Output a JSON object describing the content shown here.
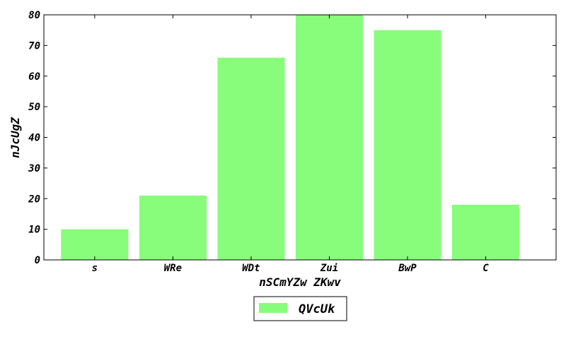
{
  "chart_data": {
    "type": "bar",
    "categories": [
      "s",
      "WRe",
      "WDt",
      "Zui",
      "BwP",
      "C"
    ],
    "series": [
      {
        "name": "QVcUk",
        "values": [
          10,
          21,
          66,
          80,
          75,
          18
        ],
        "color": "#88fc7b"
      }
    ],
    "xlabel": "nSCmYZw ZKwv",
    "ylabel": "nJcUgZ",
    "ylim": [
      0,
      80
    ],
    "yticks": [
      0,
      10,
      20,
      30,
      40,
      50,
      60,
      70,
      80
    ],
    "grid": false,
    "legend_position": "bottom-center"
  }
}
